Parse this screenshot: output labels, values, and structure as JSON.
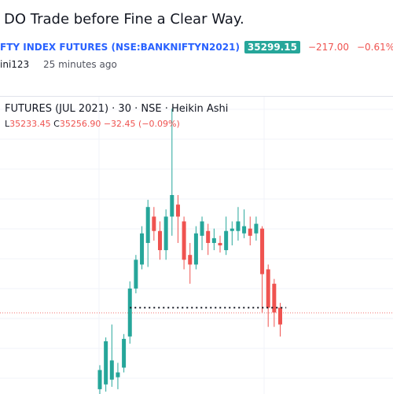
{
  "idea": {
    "title": "DO Trade before Fine a Clear Way.",
    "symbol": "FTY INDEX FUTURES (NSE:BANKNIFTYN2021)",
    "price": "35299.15",
    "change": "−217.00",
    "change_pct": "−0.61%",
    "author": "ini123",
    "time_ago": "25 minutes ago"
  },
  "chart_legend": {
    "title": "FUTURES (JUL 2021) · 30 · NSE · Heikin Ashi",
    "low_label": "L",
    "low_value": "35233.45",
    "close_label": "C",
    "close_value": "35256.90",
    "change": "−32.45 (−0.09%)"
  },
  "colors": {
    "up": "#26a69a",
    "down": "#ef5350",
    "link": "#2962ff",
    "text": "#131722"
  },
  "chart_data": {
    "type": "candlestick",
    "title": "FUTURES (JUL 2021) · 30 · NSE · Heikin Ashi",
    "interval": "30",
    "exchange": "NSE",
    "style": "Heikin Ashi",
    "ylim": [
      35130,
      35750
    ],
    "grid": true,
    "candles": [
      {
        "o": 35140,
        "h": 35190,
        "l": 35130,
        "c": 35180
      },
      {
        "o": 35150,
        "h": 35248,
        "l": 35135,
        "c": 35240
      },
      {
        "o": 35160,
        "h": 35275,
        "l": 35145,
        "c": 35200
      },
      {
        "o": 35165,
        "h": 35195,
        "l": 35140,
        "c": 35175
      },
      {
        "o": 35185,
        "h": 35255,
        "l": 35175,
        "c": 35245
      },
      {
        "o": 35250,
        "h": 35365,
        "l": 35235,
        "c": 35350
      },
      {
        "o": 35350,
        "h": 35420,
        "l": 35340,
        "c": 35410
      },
      {
        "o": 35400,
        "h": 35480,
        "l": 35390,
        "c": 35465
      },
      {
        "o": 35445,
        "h": 35535,
        "l": 35395,
        "c": 35520
      },
      {
        "o": 35500,
        "h": 35520,
        "l": 35450,
        "c": 35470
      },
      {
        "o": 35470,
        "h": 35490,
        "l": 35410,
        "c": 35430
      },
      {
        "o": 35430,
        "h": 35515,
        "l": 35410,
        "c": 35500
      },
      {
        "o": 35500,
        "h": 35725,
        "l": 35460,
        "c": 35545
      },
      {
        "o": 35525,
        "h": 35545,
        "l": 35445,
        "c": 35500
      },
      {
        "o": 35490,
        "h": 35500,
        "l": 35390,
        "c": 35410
      },
      {
        "o": 35420,
        "h": 35445,
        "l": 35360,
        "c": 35400
      },
      {
        "o": 35400,
        "h": 35480,
        "l": 35390,
        "c": 35465
      },
      {
        "o": 35460,
        "h": 35500,
        "l": 35430,
        "c": 35490
      },
      {
        "o": 35470,
        "h": 35485,
        "l": 35420,
        "c": 35445
      },
      {
        "o": 35445,
        "h": 35475,
        "l": 35430,
        "c": 35455
      },
      {
        "o": 35445,
        "h": 35460,
        "l": 35425,
        "c": 35440
      },
      {
        "o": 35430,
        "h": 35500,
        "l": 35420,
        "c": 35470
      },
      {
        "o": 35470,
        "h": 35490,
        "l": 35440,
        "c": 35475
      },
      {
        "o": 35470,
        "h": 35520,
        "l": 35450,
        "c": 35490
      },
      {
        "o": 35465,
        "h": 35515,
        "l": 35455,
        "c": 35480
      },
      {
        "o": 35475,
        "h": 35500,
        "l": 35440,
        "c": 35460
      },
      {
        "o": 35465,
        "h": 35500,
        "l": 35450,
        "c": 35485
      },
      {
        "o": 35475,
        "h": 35480,
        "l": 35300,
        "c": 35380
      },
      {
        "o": 35390,
        "h": 35400,
        "l": 35270,
        "c": 35310
      },
      {
        "o": 35360,
        "h": 35370,
        "l": 35270,
        "c": 35300
      },
      {
        "o": 35310,
        "h": 35320,
        "l": 35250,
        "c": 35275
      }
    ],
    "ref_line": 35299.15,
    "dotted_level": 35310
  }
}
